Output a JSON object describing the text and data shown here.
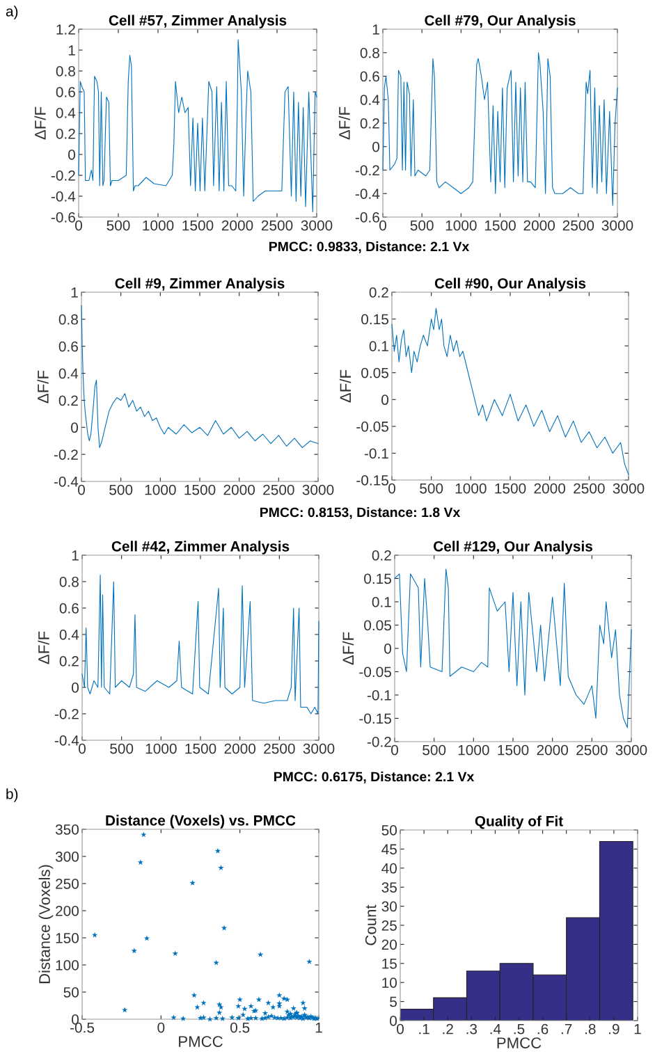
{
  "chart_data": [
    {
      "type": "line",
      "title": "Cell #57, Zimmer Analysis",
      "ylabel": "ΔF/F",
      "annotations": [
        "a)"
      ],
      "xlim": [
        0,
        3000
      ],
      "xticks": [
        0,
        500,
        1000,
        1500,
        2000,
        2500,
        3000
      ],
      "ylim": [
        -0.6,
        1.2
      ],
      "yticks": [
        -0.6,
        -0.4,
        -0.2,
        0,
        0.2,
        0.4,
        0.6,
        0.8,
        1,
        1.2
      ],
      "grid": false,
      "legend": false,
      "series": [
        {
          "color": "#0072bd",
          "x": [
            0,
            20,
            40,
            70,
            85,
            130,
            160,
            180,
            200,
            230,
            250,
            265,
            285,
            305,
            320,
            350,
            380,
            400,
            420,
            500,
            600,
            625,
            645,
            665,
            690,
            710,
            750,
            850,
            950,
            1100,
            1180,
            1200,
            1220,
            1260,
            1300,
            1340,
            1380,
            1410,
            1440,
            1470,
            1500,
            1530,
            1560,
            1590,
            1640,
            1680,
            1700,
            1740,
            1770,
            1800,
            1830,
            1860,
            1890,
            1930,
            1980,
            2000,
            2010,
            2050,
            2080,
            2110,
            2130,
            2170,
            2200,
            2260,
            2350,
            2450,
            2560,
            2600,
            2640,
            2680,
            2710,
            2740,
            2770,
            2800,
            2830,
            2860,
            2900,
            2950,
            2980,
            3000
          ],
          "values": [
            -0.2,
            0.7,
            0.65,
            0.6,
            -0.25,
            -0.25,
            -0.15,
            -0.25,
            0.75,
            0.7,
            0.6,
            -0.3,
            0.6,
            -0.3,
            -0.25,
            0.55,
            0.5,
            -0.3,
            -0.25,
            -0.25,
            -0.2,
            0.7,
            0.95,
            0.85,
            -0.35,
            -0.3,
            -0.3,
            -0.22,
            -0.28,
            -0.3,
            -0.2,
            0.1,
            0.7,
            0.4,
            0.55,
            0.4,
            0.45,
            -0.3,
            0.35,
            -0.35,
            0.3,
            -0.35,
            0.35,
            -0.35,
            0.7,
            0.6,
            -0.3,
            0.65,
            -0.35,
            0.5,
            -0.35,
            0.7,
            -0.3,
            -0.3,
            -0.35,
            0.5,
            1.1,
            0.6,
            -0.4,
            0.4,
            0.8,
            0.6,
            -0.45,
            -0.4,
            -0.35,
            -0.35,
            -0.35,
            0.6,
            0.65,
            -0.4,
            0.6,
            -0.45,
            0.5,
            -0.4,
            0.45,
            -0.5,
            0.6,
            -0.55,
            0.6,
            0.55
          ]
        }
      ]
    },
    {
      "type": "line",
      "title": "Cell #79, Our Analysis",
      "ylabel": "ΔF/F",
      "annotations": [
        "PMCC: 0.9833, Distance: 2.1 Vx"
      ],
      "xlim": [
        0,
        3000
      ],
      "xticks": [
        0,
        500,
        1000,
        1500,
        2000,
        2500,
        3000
      ],
      "ylim": [
        -0.6,
        1
      ],
      "yticks": [
        -0.6,
        -0.4,
        -0.2,
        0,
        0.2,
        0.4,
        0.6,
        0.8,
        1
      ],
      "grid": false,
      "legend": false,
      "series": [
        {
          "color": "#0072bd",
          "x": [
            0,
            20,
            40,
            70,
            90,
            150,
            180,
            200,
            230,
            250,
            270,
            290,
            310,
            340,
            360,
            390,
            410,
            450,
            550,
            600,
            640,
            660,
            690,
            720,
            800,
            900,
            1000,
            1100,
            1150,
            1200,
            1220,
            1260,
            1300,
            1340,
            1380,
            1410,
            1440,
            1470,
            1500,
            1530,
            1560,
            1590,
            1640,
            1670,
            1700,
            1730,
            1760,
            1790,
            1820,
            1850,
            1890,
            1950,
            1990,
            2010,
            2050,
            2080,
            2110,
            2140,
            2170,
            2200,
            2300,
            2400,
            2500,
            2560,
            2600,
            2620,
            2650,
            2680,
            2710,
            2740,
            2770,
            2800,
            2830,
            2860,
            2900,
            2940,
            2970,
            3000
          ],
          "values": [
            -0.2,
            0.5,
            0.6,
            0.4,
            -0.2,
            -0.15,
            -0.1,
            0.65,
            0.6,
            -0.2,
            0.55,
            -0.2,
            0.55,
            0.45,
            -0.25,
            0.4,
            -0.25,
            -0.2,
            -0.25,
            -0.2,
            0.75,
            0.6,
            -0.3,
            -0.35,
            -0.3,
            -0.35,
            -0.4,
            -0.35,
            -0.3,
            0.7,
            0.75,
            0.6,
            0.4,
            0.55,
            -0.3,
            0.35,
            -0.4,
            0.3,
            -0.3,
            0.5,
            -0.35,
            0.5,
            0.65,
            -0.3,
            0.55,
            -0.25,
            0.5,
            -0.3,
            0.55,
            -0.3,
            -0.3,
            -0.35,
            0.8,
            0.7,
            0.3,
            -0.4,
            0.75,
            0.6,
            -0.35,
            -0.4,
            -0.4,
            -0.35,
            -0.4,
            -0.4,
            0.55,
            0.45,
            0.65,
            -0.35,
            0.5,
            -0.4,
            0.35,
            -0.3,
            0.4,
            -0.4,
            0.3,
            -0.5,
            0.2,
            0.5
          ]
        }
      ]
    },
    {
      "type": "line",
      "title": "Cell #9, Zimmer Analysis",
      "ylabel": "ΔF/F",
      "xlim": [
        0,
        3000
      ],
      "xticks": [
        0,
        500,
        1000,
        1500,
        2000,
        2500,
        3000
      ],
      "ylim": [
        -0.4,
        1
      ],
      "yticks": [
        -0.4,
        -0.2,
        0,
        0.2,
        0.4,
        0.6,
        0.8,
        1
      ],
      "grid": false,
      "legend": false,
      "series": [
        {
          "color": "#0072bd",
          "x": [
            0,
            10,
            20,
            35,
            50,
            80,
            100,
            120,
            150,
            170,
            190,
            210,
            230,
            260,
            300,
            350,
            400,
            450,
            500,
            550,
            600,
            650,
            700,
            750,
            800,
            850,
            900,
            950,
            1000,
            1050,
            1100,
            1200,
            1300,
            1400,
            1500,
            1600,
            1700,
            1800,
            1900,
            2000,
            2100,
            2200,
            2300,
            2400,
            2500,
            2600,
            2700,
            2800,
            2900,
            3000
          ],
          "values": [
            0.9,
            0.6,
            0.4,
            0.2,
            0.1,
            -0.05,
            -0.1,
            -0.05,
            0.15,
            0.3,
            0.35,
            0.0,
            -0.15,
            -0.1,
            0.0,
            0.12,
            0.18,
            0.22,
            0.2,
            0.25,
            0.15,
            0.2,
            0.12,
            0.15,
            0.08,
            0.12,
            0.05,
            0.07,
            0.0,
            -0.05,
            0.0,
            -0.05,
            0.02,
            -0.04,
            0.0,
            -0.06,
            0.05,
            -0.05,
            0.0,
            -0.08,
            -0.03,
            -0.1,
            -0.05,
            -0.12,
            -0.06,
            -0.14,
            -0.08,
            -0.15,
            -0.1,
            -0.12
          ]
        }
      ]
    },
    {
      "type": "line",
      "title": "Cell #90, Our Analysis",
      "ylabel": "ΔF/F",
      "annotations": [
        "PMCC: 0.8153, Distance: 1.8 Vx"
      ],
      "xlim": [
        0,
        3000
      ],
      "xticks": [
        0,
        500,
        1000,
        1500,
        2000,
        2500,
        3000
      ],
      "ylim": [
        -0.15,
        0.2
      ],
      "yticks": [
        -0.15,
        -0.1,
        -0.05,
        0,
        0.05,
        0.1,
        0.15,
        0.2
      ],
      "grid": false,
      "legend": false,
      "series": [
        {
          "color": "#0072bd",
          "x": [
            0,
            30,
            60,
            90,
            120,
            150,
            180,
            210,
            250,
            280,
            320,
            360,
            400,
            450,
            500,
            530,
            560,
            600,
            630,
            660,
            700,
            740,
            780,
            820,
            860,
            900,
            950,
            1000,
            1050,
            1100,
            1150,
            1200,
            1300,
            1400,
            1500,
            1600,
            1700,
            1800,
            1900,
            2000,
            2100,
            2200,
            2300,
            2400,
            2500,
            2600,
            2700,
            2800,
            2900,
            2950,
            3000
          ],
          "values": [
            0.14,
            0.09,
            0.12,
            0.07,
            0.11,
            0.13,
            0.08,
            0.1,
            0.05,
            0.09,
            0.07,
            0.1,
            0.12,
            0.1,
            0.15,
            0.13,
            0.17,
            0.13,
            0.15,
            0.1,
            0.08,
            0.12,
            0.09,
            0.11,
            0.08,
            0.09,
            0.06,
            0.03,
            0.0,
            -0.03,
            -0.01,
            -0.04,
            0.0,
            -0.03,
            0.01,
            -0.04,
            -0.01,
            -0.05,
            -0.02,
            -0.06,
            -0.03,
            -0.07,
            -0.04,
            -0.08,
            -0.06,
            -0.09,
            -0.07,
            -0.1,
            -0.08,
            -0.12,
            -0.14
          ]
        }
      ]
    },
    {
      "type": "line",
      "title": "Cell #42, Zimmer Analysis",
      "ylabel": "ΔF/F",
      "xlim": [
        0,
        3000
      ],
      "xticks": [
        0,
        500,
        1000,
        1500,
        2000,
        2500,
        3000
      ],
      "ylim": [
        -0.4,
        1
      ],
      "yticks": [
        -0.4,
        -0.2,
        0,
        0.2,
        0.4,
        0.6,
        0.8,
        1
      ],
      "grid": false,
      "legend": false,
      "series": [
        {
          "color": "#0072bd",
          "x": [
            0,
            30,
            50,
            70,
            100,
            150,
            200,
            230,
            245,
            260,
            280,
            350,
            400,
            420,
            500,
            600,
            650,
            670,
            690,
            800,
            950,
            1100,
            1200,
            1230,
            1260,
            1400,
            1470,
            1490,
            1600,
            1730,
            1750,
            1790,
            1810,
            1900,
            2000,
            2030,
            2060,
            2130,
            2160,
            2300,
            2450,
            2600,
            2650,
            2680,
            2700,
            2750,
            2770,
            2850,
            2900,
            2950,
            2990,
            3000
          ],
          "values": [
            0.1,
            0.0,
            0.45,
            0.0,
            -0.05,
            0.05,
            0.0,
            0.85,
            0.0,
            0.7,
            0.0,
            -0.05,
            0.8,
            0.0,
            0.05,
            0.0,
            0.1,
            0.55,
            0.0,
            -0.03,
            0.05,
            0.0,
            0.05,
            0.35,
            0.0,
            -0.05,
            0.65,
            0.0,
            -0.05,
            0.75,
            0.0,
            0.6,
            0.0,
            -0.05,
            0.0,
            0.77,
            0.0,
            0.65,
            -0.1,
            -0.12,
            -0.1,
            -0.1,
            0.0,
            0.6,
            -0.1,
            0.6,
            -0.15,
            -0.15,
            -0.2,
            -0.15,
            -0.2,
            0.5
          ]
        }
      ]
    },
    {
      "type": "line",
      "title": "Cell #129, Our Analysis",
      "ylabel": "ΔF/F",
      "annotations": [
        "PMCC: 0.6175, Distance: 2.1 Vx"
      ],
      "xlim": [
        0,
        3000
      ],
      "xticks": [
        0,
        500,
        1000,
        1500,
        2000,
        2500,
        3000
      ],
      "ylim": [
        -0.2,
        0.2
      ],
      "yticks": [
        -0.2,
        -0.15,
        -0.1,
        -0.05,
        0,
        0.05,
        0.1,
        0.15,
        0.2
      ],
      "grid": false,
      "legend": false,
      "series": [
        {
          "color": "#0072bd",
          "x": [
            0,
            60,
            100,
            150,
            200,
            300,
            330,
            380,
            420,
            450,
            600,
            650,
            680,
            700,
            850,
            1000,
            1100,
            1180,
            1200,
            1300,
            1400,
            1450,
            1500,
            1550,
            1600,
            1650,
            1700,
            1800,
            1850,
            1900,
            2000,
            2100,
            2150,
            2200,
            2300,
            2400,
            2500,
            2550,
            2600,
            2650,
            2680,
            2750,
            2800,
            2850,
            2900,
            2950,
            3000
          ],
          "values": [
            0.15,
            0.16,
            -0.01,
            -0.05,
            0.16,
            0.13,
            -0.04,
            0.15,
            0.05,
            -0.04,
            -0.05,
            0.17,
            0.13,
            -0.06,
            -0.04,
            -0.05,
            -0.03,
            -0.04,
            0.13,
            0.08,
            0.1,
            -0.05,
            0.12,
            -0.08,
            0.1,
            -0.1,
            0.12,
            -0.05,
            0.05,
            -0.07,
            0.11,
            -0.08,
            0.14,
            -0.06,
            -0.1,
            -0.12,
            -0.08,
            -0.15,
            0.05,
            0.01,
            0.1,
            -0.02,
            0.04,
            -0.1,
            -0.15,
            -0.17,
            0.04
          ]
        }
      ]
    },
    {
      "type": "scatter",
      "title": "Distance (Voxels) vs. PMCC",
      "xlabel": "PMCC",
      "ylabel": "Distance (Voxels)",
      "annotations": [
        "b)"
      ],
      "xlim": [
        -0.5,
        1
      ],
      "xticks": [
        -0.5,
        0,
        0.5,
        1
      ],
      "ylim": [
        0,
        350
      ],
      "yticks": [
        0,
        50,
        100,
        150,
        200,
        250,
        300,
        350
      ],
      "grid": false,
      "legend": false,
      "marker": "star",
      "series": [
        {
          "color": "#0072bd",
          "x": [
            -0.42,
            -0.11,
            -0.13,
            -0.23,
            -0.17,
            -0.09,
            0.08,
            0.09,
            0.14,
            0.2,
            0.21,
            0.23,
            0.27,
            0.25,
            0.27,
            0.31,
            0.36,
            0.38,
            0.4,
            0.35,
            0.35,
            0.37,
            0.38,
            0.37,
            0.39,
            0.49,
            0.5,
            0.49,
            0.52,
            0.53,
            0.57,
            0.59,
            0.6,
            0.57,
            0.62,
            0.63,
            0.64,
            0.66,
            0.66,
            0.68,
            0.71,
            0.7,
            0.75,
            0.75,
            0.75,
            0.78,
            0.8,
            0.8,
            0.84,
            0.86,
            0.9,
            0.91,
            0.94,
            0.68,
            0.72,
            0.74,
            0.76,
            0.78,
            0.8,
            0.81,
            0.82,
            0.83,
            0.84,
            0.85,
            0.86,
            0.87,
            0.88,
            0.89,
            0.9,
            0.91,
            0.92,
            0.93,
            0.94,
            0.95,
            0.96,
            0.97,
            0.98,
            0.99,
            0.82,
            0.85,
            0.88,
            0.91,
            0.94,
            0.97,
            0.86,
            0.45,
            0.55,
            0.6
          ],
          "values": [
            155,
            340,
            289,
            17,
            126,
            149,
            3,
            121,
            1,
            251,
            44,
            22,
            30,
            2,
            3,
            0,
            310,
            279,
            168,
            104,
            2,
            27,
            22,
            12,
            1,
            24,
            36,
            2,
            8,
            19,
            24,
            15,
            16,
            2,
            36,
            119,
            1,
            2,
            11,
            30,
            22,
            6,
            44,
            29,
            24,
            38,
            36,
            14,
            20,
            12,
            30,
            20,
            106,
            4,
            3,
            2,
            2,
            1,
            3,
            8,
            2,
            5,
            4,
            9,
            3,
            6,
            2,
            5,
            1,
            7,
            3,
            4,
            2,
            5,
            3,
            1,
            2,
            1,
            10,
            6,
            4,
            8,
            3,
            2,
            11,
            3,
            1,
            2
          ]
        }
      ]
    },
    {
      "type": "histogram",
      "title": "Quality of Fit",
      "xlabel": "PMCC",
      "ylabel": "Count",
      "xlim": [
        0,
        1
      ],
      "xticks": [
        0,
        {
          "value": 0.1,
          "label": ".1"
        },
        {
          "value": 0.2,
          "label": ".2"
        },
        {
          "value": 0.3,
          "label": ".3"
        },
        {
          "value": 0.4,
          "label": ".4"
        },
        {
          "value": 0.5,
          "label": ".5"
        },
        {
          "value": 0.6,
          "label": ".6"
        },
        {
          "value": 0.7,
          "label": ".7"
        },
        {
          "value": 0.8,
          "label": ".8"
        },
        {
          "value": 0.9,
          "label": ".9"
        },
        1
      ],
      "ylim": [
        0,
        50
      ],
      "yticks": [
        0,
        5,
        10,
        15,
        20,
        25,
        30,
        35,
        40,
        45,
        50
      ],
      "grid": false,
      "legend": false,
      "color": "#352f87",
      "bins": [
        0,
        0.14,
        0.28,
        0.42,
        0.56,
        0.7,
        0.84,
        0.98
      ],
      "values": [
        3,
        6,
        13,
        15,
        12,
        27,
        47
      ]
    }
  ]
}
